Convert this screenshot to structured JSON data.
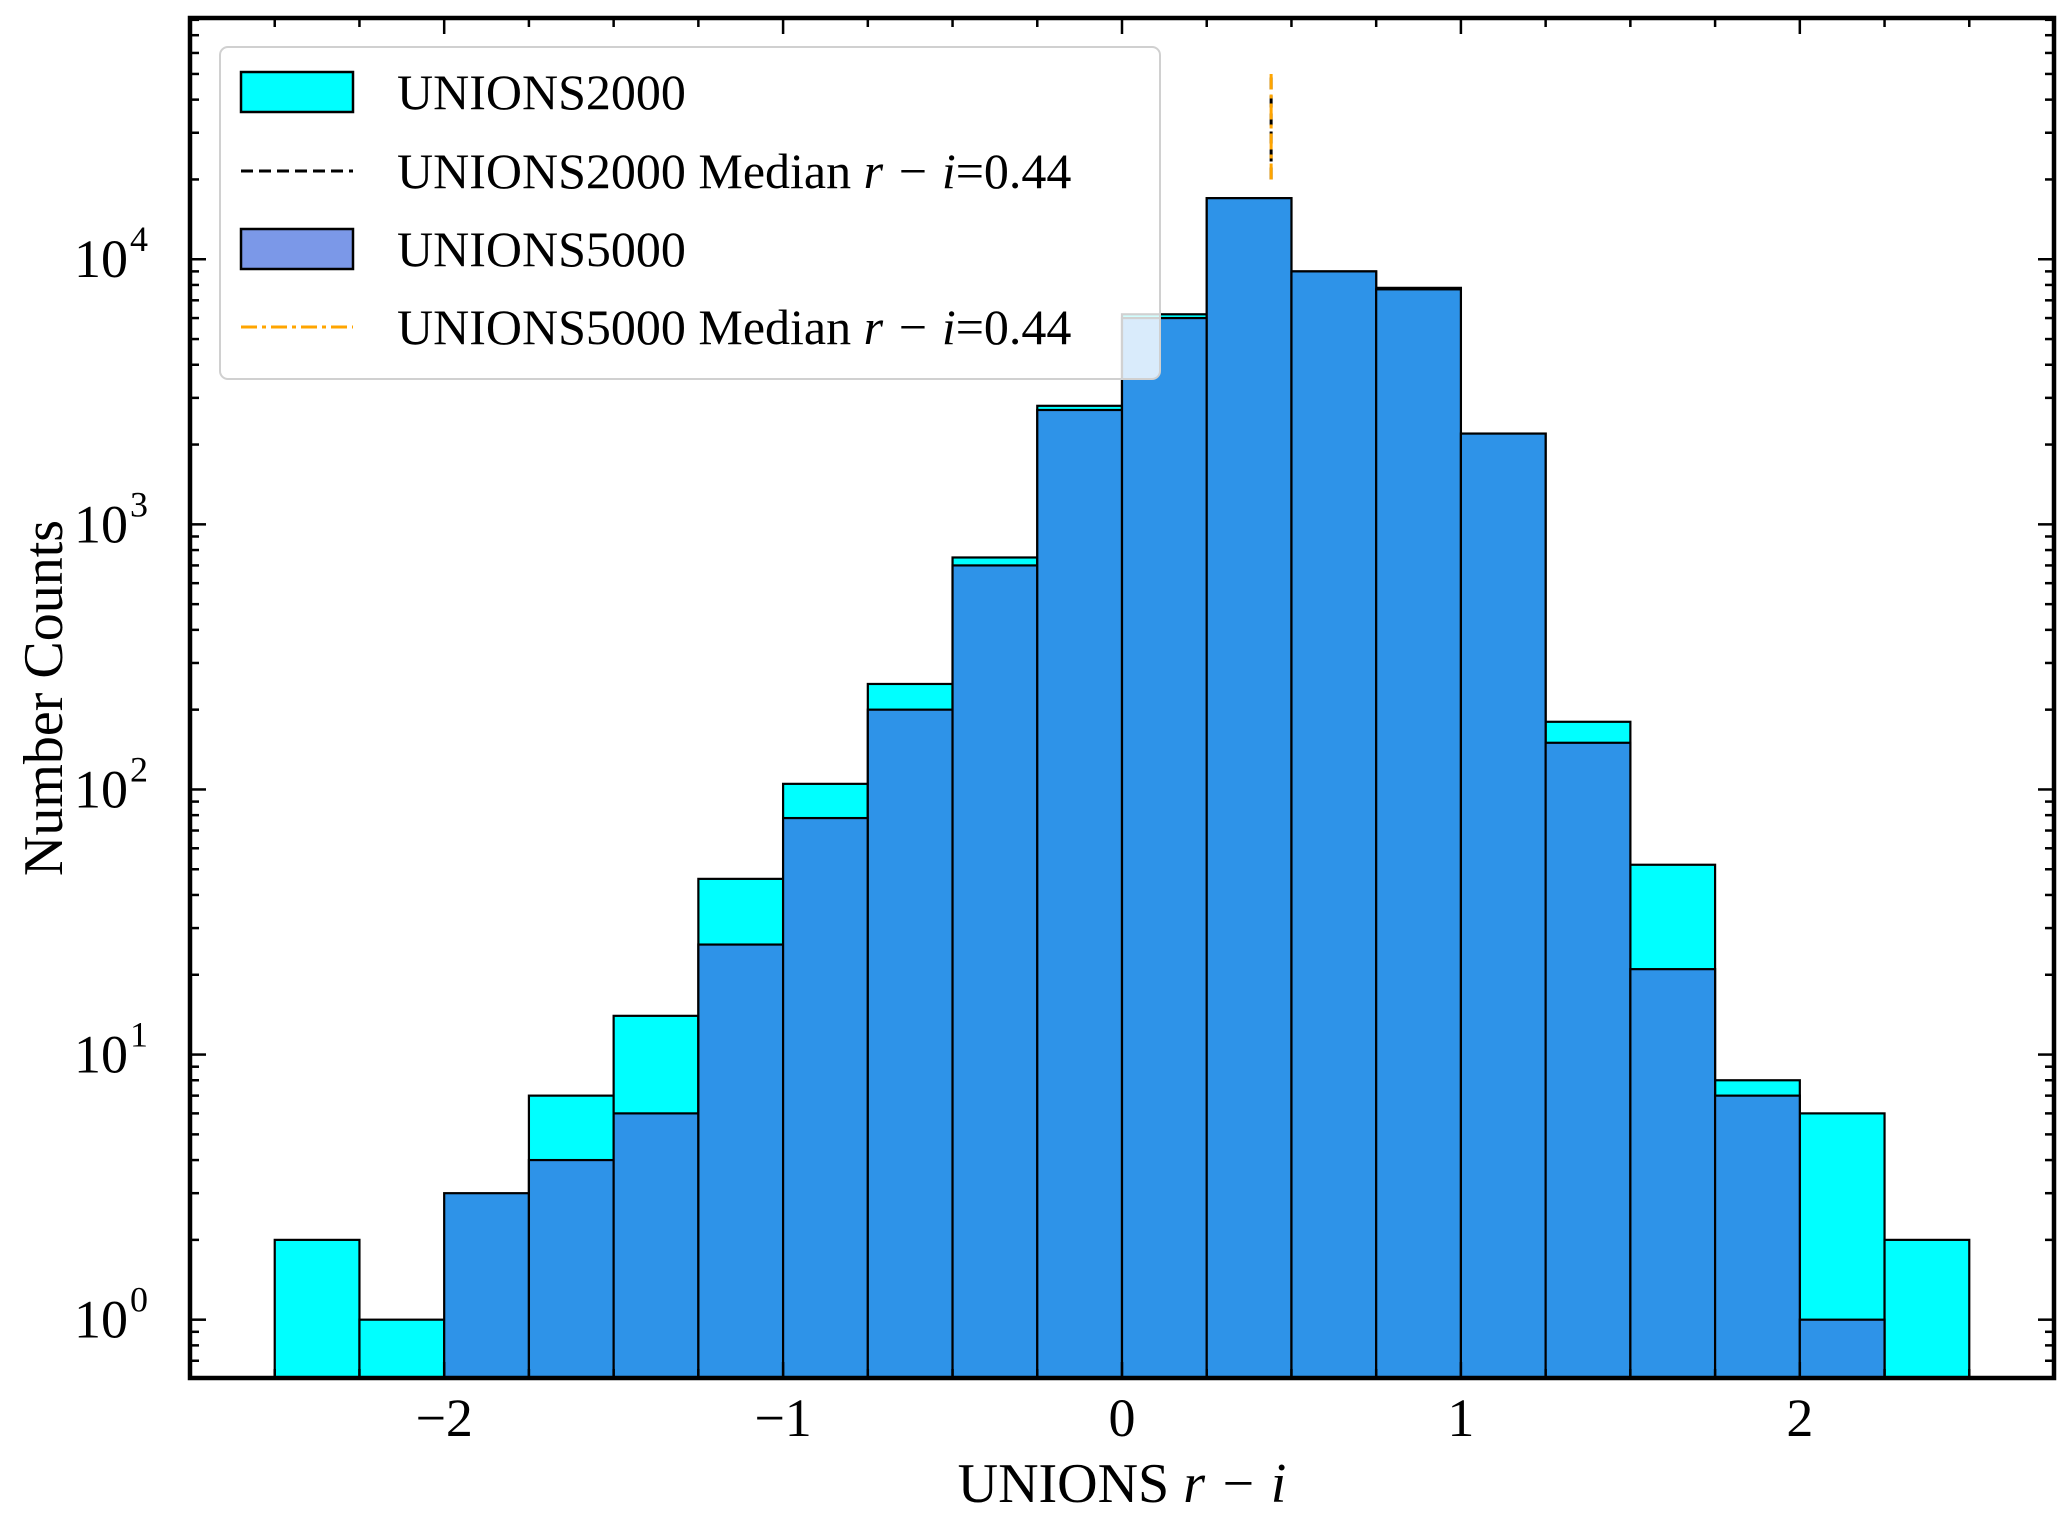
{
  "chart_data": {
    "type": "histogram",
    "xlabel_prefix": "UNIONS",
    "xlabel_var": "r − i",
    "ylabel": "Number Counts",
    "yscale": "log",
    "xlim": [
      -2.75,
      2.75
    ],
    "ylim_exponents": [
      -0.22,
      1.44
    ],
    "ylim_note": "y axis spans approx 0.6 to 8e4 (log scale)",
    "bin_edges": [
      -2.5,
      -2.25,
      -2.0,
      -1.75,
      -1.5,
      -1.25,
      -1.0,
      -0.75,
      -0.5,
      -0.25,
      0.0,
      0.25,
      0.5,
      0.75,
      1.0,
      1.25,
      1.5,
      1.75,
      2.0,
      2.25,
      2.5
    ],
    "xticks": [
      {
        "value": -2,
        "label": "−2"
      },
      {
        "value": -1,
        "label": "−1"
      },
      {
        "value": 0,
        "label": "0"
      },
      {
        "value": 1,
        "label": "1"
      },
      {
        "value": 2,
        "label": "2"
      }
    ],
    "yticks": [
      {
        "value": 1,
        "base": "10",
        "exp": "0"
      },
      {
        "value": 10,
        "base": "10",
        "exp": "1"
      },
      {
        "value": 100,
        "base": "10",
        "exp": "2"
      },
      {
        "value": 1000,
        "base": "10",
        "exp": "3"
      },
      {
        "value": 10000,
        "base": "10",
        "exp": "4"
      }
    ],
    "series": [
      {
        "name": "UNIONS2000",
        "kind": "hist",
        "color": "#00ffff",
        "values": [
          2,
          1,
          0,
          7,
          14,
          46,
          105,
          250,
          750,
          2800,
          6200,
          17000,
          9000,
          7800,
          2200,
          180,
          52,
          8,
          6,
          2
        ]
      },
      {
        "name": "UNIONS5000",
        "kind": "hist",
        "color": "#2e93e8",
        "legend_color": "#7b98e8",
        "values": [
          0,
          0,
          3,
          4,
          6,
          26,
          78,
          200,
          700,
          2700,
          6000,
          17000,
          9000,
          7700,
          2200,
          150,
          21,
          7,
          1,
          0
        ]
      }
    ],
    "medians": [
      {
        "series": "UNIONS2000",
        "label_prefix": "UNIONS2000 Median ",
        "label_var": "r − i",
        "label_value": "=0.44",
        "x": 0.44,
        "color": "#000000",
        "style": "dashed"
      },
      {
        "series": "UNIONS5000",
        "label_prefix": "UNIONS5000 Median ",
        "label_var": "r − i",
        "label_value": "=0.44",
        "x": 0.44,
        "color": "#ffa500",
        "style": "dashdot"
      }
    ],
    "median_line_yrange": [
      20000,
      50000
    ],
    "legend_position": "upper-left"
  }
}
